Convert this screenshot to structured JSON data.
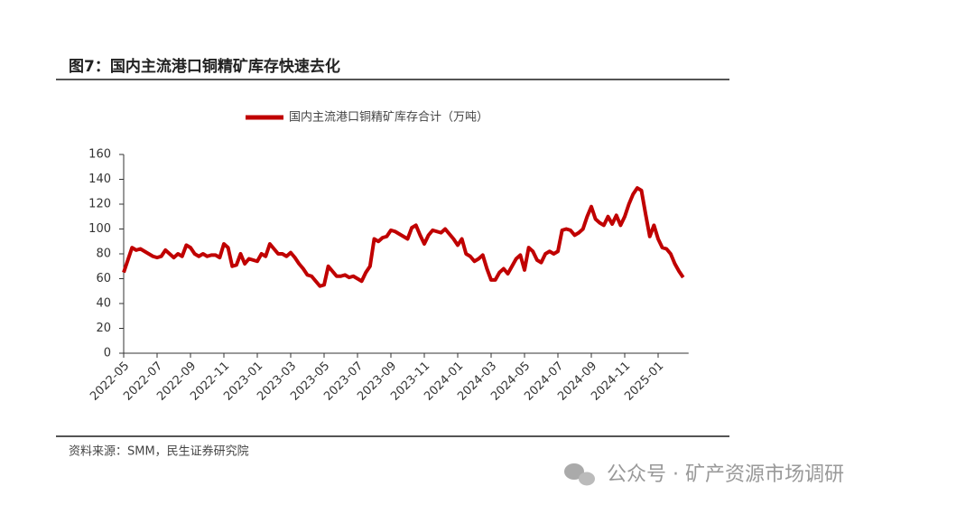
{
  "chart_data": {
    "type": "line",
    "title": "图7：国内主流港口铜精矿库存快速去化",
    "categories": [
      "2022-05",
      null,
      null,
      null,
      null,
      null,
      null,
      null,
      "2022-07",
      null,
      null,
      null,
      null,
      null,
      null,
      null,
      "2022-09",
      null,
      null,
      null,
      null,
      null,
      null,
      null,
      "2022-11",
      null,
      null,
      null,
      null,
      null,
      null,
      null,
      "2023-01",
      null,
      null,
      null,
      null,
      null,
      null,
      null,
      "2023-03",
      null,
      null,
      null,
      null,
      null,
      null,
      null,
      "2023-05",
      null,
      null,
      null,
      null,
      null,
      null,
      null,
      "2023-07",
      null,
      null,
      null,
      null,
      null,
      null,
      null,
      "2023-09",
      null,
      null,
      null,
      null,
      null,
      null,
      null,
      "2023-11",
      null,
      null,
      null,
      null,
      null,
      null,
      null,
      "2024-01",
      null,
      null,
      null,
      null,
      null,
      null,
      null,
      "2024-03",
      null,
      null,
      null,
      null,
      null,
      null,
      null,
      "2024-05",
      null,
      null,
      null,
      null,
      null,
      null,
      null,
      "2024-07",
      null,
      null,
      null,
      null,
      null,
      null,
      null,
      "2024-09",
      null,
      null,
      null,
      null,
      null,
      null,
      null,
      "2024-11",
      null,
      null,
      null,
      null,
      null,
      null,
      null,
      "2025-01",
      null,
      null,
      null,
      null,
      null,
      null
    ],
    "series": [
      {
        "name": "国内主流港口铜精矿库存合计（万吨）",
        "color": "#c00000",
        "values": [
          65,
          75,
          85,
          83,
          84,
          82,
          80,
          78,
          77,
          78,
          83,
          80,
          77,
          80,
          78,
          87,
          85,
          80,
          78,
          80,
          78,
          79,
          79,
          77,
          88,
          85,
          70,
          71,
          80,
          72,
          76,
          75,
          74,
          80,
          78,
          88,
          84,
          80,
          80,
          78,
          81,
          77,
          72,
          68,
          63,
          62,
          58,
          54,
          55,
          70,
          66,
          62,
          62,
          63,
          61,
          62,
          60,
          58,
          65,
          70,
          92,
          90,
          93,
          94,
          99,
          98,
          96,
          94,
          92,
          101,
          103,
          95,
          88,
          95,
          99,
          98,
          97,
          100,
          96,
          92,
          87,
          92,
          80,
          78,
          74,
          76,
          79,
          68,
          59,
          59,
          65,
          68,
          64,
          70,
          76,
          79,
          67,
          85,
          82,
          75,
          73,
          80,
          82,
          80,
          82,
          99,
          100,
          99,
          95,
          97,
          100,
          110,
          118,
          108,
          105,
          103,
          110,
          104,
          111,
          103,
          110,
          120,
          128,
          133,
          131,
          112,
          94,
          103,
          92,
          85,
          84,
          80,
          72,
          66,
          61
        ]
      }
    ],
    "ylim": [
      0,
      160
    ],
    "yticks": [
      0,
      20,
      40,
      60,
      80,
      100,
      120,
      140,
      160
    ],
    "grid": false
  },
  "source": "资料来源：SMM，民生证券研究院",
  "watermark": "公众号 · 矿产资源市场调研"
}
